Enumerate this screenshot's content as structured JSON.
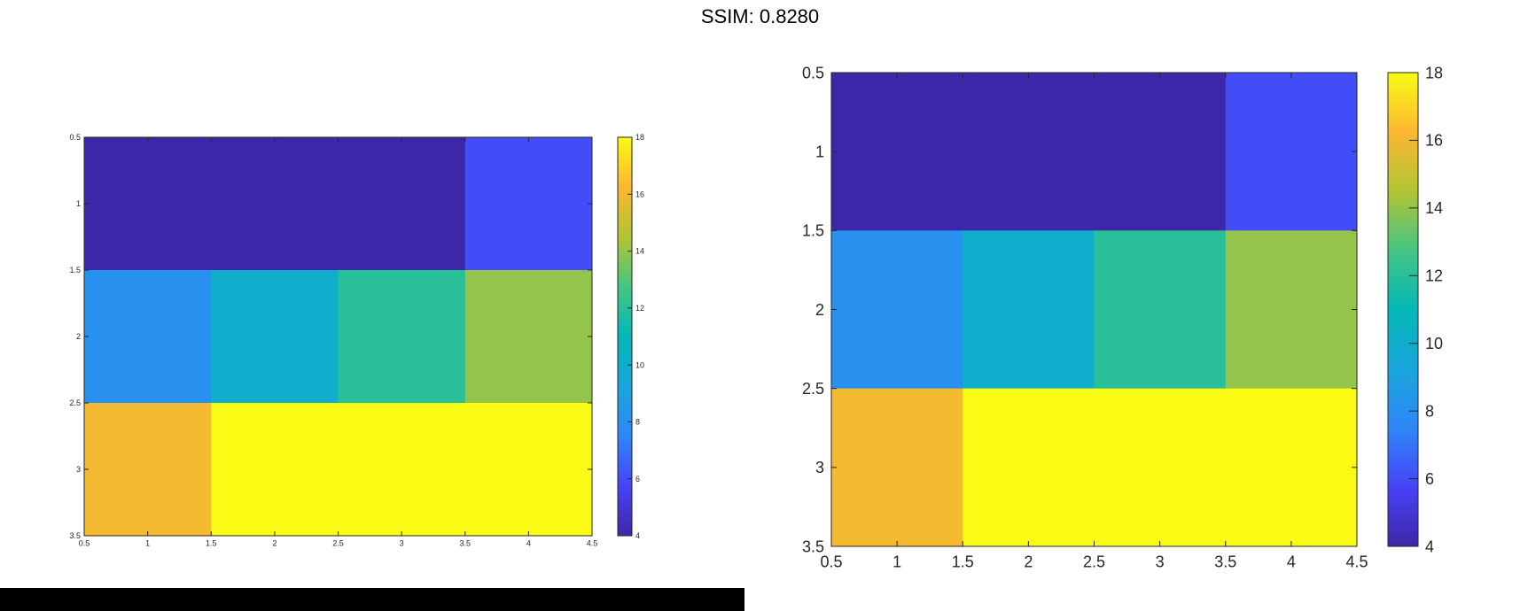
{
  "title": "SSIM: 0.8280",
  "colors": {
    "background": "#ffffff",
    "axis": "#262626",
    "bottom_bar": "#000000"
  },
  "colormap_name": "parula",
  "chart_data": [
    {
      "type": "heatmap",
      "name": "left",
      "title": "",
      "xlabel": "",
      "ylabel": "",
      "xlim": [
        0.5,
        4.5
      ],
      "ylim": [
        0.5,
        3.5
      ],
      "y_reversed": true,
      "xticks": [
        0.5,
        1,
        1.5,
        2,
        2.5,
        3,
        3.5,
        4,
        4.5
      ],
      "xtick_labels": [
        "0.5",
        "1",
        "1.5",
        "2",
        "2.5",
        "3",
        "3.5",
        "4",
        "4.5"
      ],
      "yticks": [
        0.5,
        1,
        1.5,
        2,
        2.5,
        3,
        3.5
      ],
      "ytick_labels": [
        "0.5",
        "1",
        "1.5",
        "2",
        "2.5",
        "3",
        "3.5"
      ],
      "values": [
        [
          4,
          4,
          4,
          6
        ],
        [
          8,
          10,
          12,
          14
        ],
        [
          16,
          18,
          18,
          18
        ]
      ],
      "colorbar": {
        "range": [
          4,
          18
        ],
        "ticks": [
          4,
          6,
          8,
          10,
          12,
          14,
          16,
          18
        ],
        "tick_labels": [
          "4",
          "6",
          "8",
          "10",
          "12",
          "14",
          "16",
          "18"
        ]
      }
    },
    {
      "type": "heatmap",
      "name": "right",
      "title": "",
      "xlabel": "",
      "ylabel": "",
      "xlim": [
        0.5,
        4.5
      ],
      "ylim": [
        0.5,
        3.5
      ],
      "y_reversed": true,
      "xticks": [
        0.5,
        1,
        1.5,
        2,
        2.5,
        3,
        3.5,
        4,
        4.5
      ],
      "xtick_labels": [
        "0.5",
        "1",
        "1.5",
        "2",
        "2.5",
        "3",
        "3.5",
        "4",
        "4.5"
      ],
      "yticks": [
        0.5,
        1,
        1.5,
        2,
        2.5,
        3,
        3.5
      ],
      "ytick_labels": [
        "0.5",
        "1",
        "1.5",
        "2",
        "2.5",
        "3",
        "3.5"
      ],
      "values": [
        [
          4,
          4,
          4,
          6
        ],
        [
          8,
          10,
          12,
          14
        ],
        [
          16,
          18,
          18,
          18
        ]
      ],
      "colorbar": {
        "range": [
          4,
          18
        ],
        "ticks": [
          4,
          6,
          8,
          10,
          12,
          14,
          16,
          18
        ],
        "tick_labels": [
          "4",
          "6",
          "8",
          "10",
          "12",
          "14",
          "16",
          "18"
        ]
      }
    }
  ]
}
